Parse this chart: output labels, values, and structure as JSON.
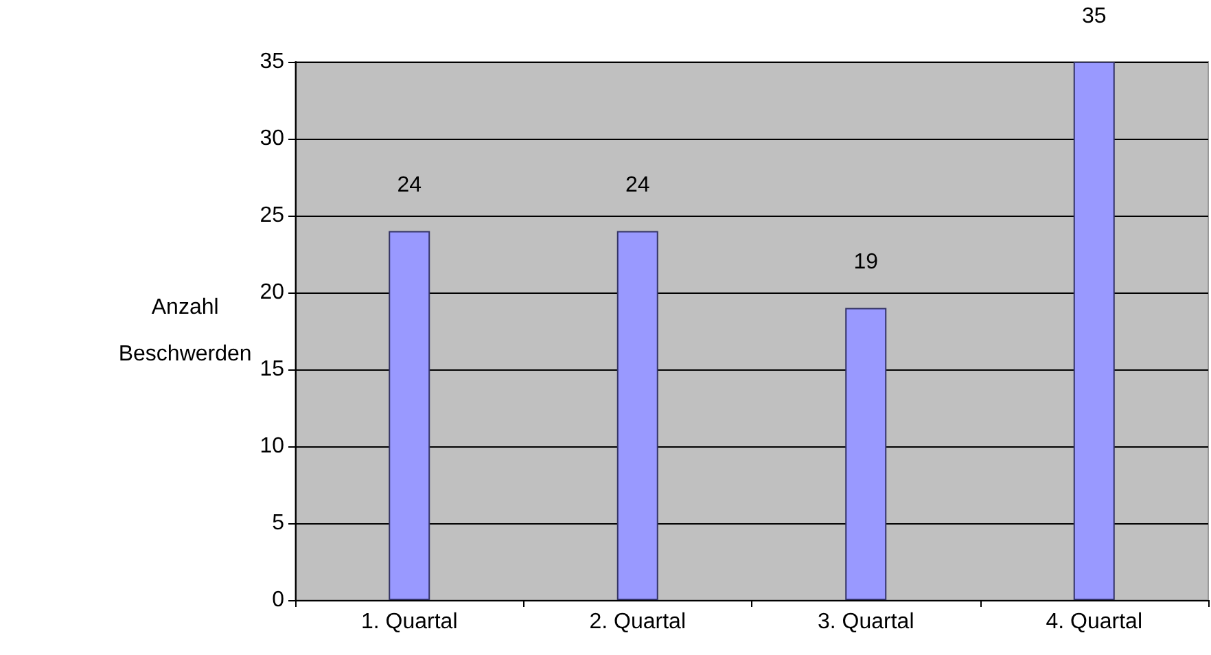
{
  "chart_data": {
    "type": "bar",
    "ylabel": "Anzahl\nBeschwerden",
    "categories": [
      "1. Quartal",
      "2. Quartal",
      "3. Quartal",
      "4. Quartal"
    ],
    "values": [
      24,
      24,
      19,
      35
    ],
    "color": "#9999ff",
    "ylim": [
      0,
      35
    ],
    "yticks": [
      0,
      5,
      10,
      15,
      20,
      25,
      30,
      35
    ],
    "grid": true,
    "data_labels": true
  }
}
